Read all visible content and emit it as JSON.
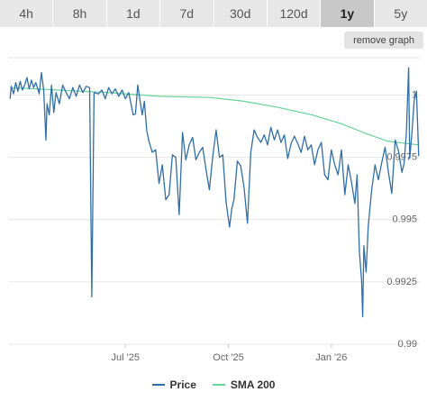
{
  "tabs": [
    {
      "label": "4h",
      "active": false
    },
    {
      "label": "8h",
      "active": false
    },
    {
      "label": "1d",
      "active": false
    },
    {
      "label": "7d",
      "active": false
    },
    {
      "label": "30d",
      "active": false
    },
    {
      "label": "120d",
      "active": false
    },
    {
      "label": "1y",
      "active": true
    },
    {
      "label": "5y",
      "active": false
    }
  ],
  "remove_graph_label": "remove graph",
  "colors": {
    "price": "#2f6fa7",
    "sma": "#67d49a",
    "grid": "#e6e6e6",
    "active_tab": "#c8c8c8"
  },
  "chart_data": {
    "type": "line",
    "title": "",
    "xlabel": "",
    "ylabel": "",
    "ylim": [
      0.99,
      1.0015
    ],
    "y_ticks": [
      1,
      0.9975,
      0.995,
      0.9925,
      0.99
    ],
    "y_tick_labels": [
      "1",
      "0.9975",
      "0.995",
      "0.9925",
      "0.99"
    ],
    "x_ticks": [
      {
        "label": "Jul '25",
        "date": "2025-07-01"
      },
      {
        "label": "Oct '25",
        "date": "2025-10-01"
      },
      {
        "label": "Jan '26",
        "date": "2026-01-01"
      }
    ],
    "legend": {
      "position": "bottom",
      "entries": [
        "Price",
        "SMA 200"
      ]
    },
    "grid": true,
    "series": [
      {
        "name": "Price",
        "color": "#2f6fa7",
        "points": [
          [
            "2025-03-20",
            0.99985
          ],
          [
            "2025-03-21",
            1.00035
          ],
          [
            "2025-03-23",
            1.00005
          ],
          [
            "2025-03-25",
            1.0005
          ],
          [
            "2025-03-27",
            1.00015
          ],
          [
            "2025-03-29",
            1.00055
          ],
          [
            "2025-03-31",
            1.0002
          ],
          [
            "2025-04-02",
            1.0004
          ],
          [
            "2025-04-04",
            1.0007
          ],
          [
            "2025-04-06",
            1.00025
          ],
          [
            "2025-04-08",
            1.0006
          ],
          [
            "2025-04-10",
            1.0003
          ],
          [
            "2025-04-12",
            1.0005
          ],
          [
            "2025-04-15",
            1.00005
          ],
          [
            "2025-04-17",
            1.0009
          ],
          [
            "2025-04-19",
            1.0002
          ],
          [
            "2025-04-21",
            0.9982
          ],
          [
            "2025-04-22",
            0.99965
          ],
          [
            "2025-04-24",
            0.9992
          ],
          [
            "2025-04-26",
            1.0004
          ],
          [
            "2025-04-28",
            0.9993
          ],
          [
            "2025-04-30",
            1.0001
          ],
          [
            "2025-05-03",
            0.99965
          ],
          [
            "2025-05-06",
            1.0004
          ],
          [
            "2025-05-09",
            1.0001
          ],
          [
            "2025-05-12",
            0.99985
          ],
          [
            "2025-05-15",
            1.0003
          ],
          [
            "2025-05-18",
            0.99995
          ],
          [
            "2025-05-21",
            1.0004
          ],
          [
            "2025-05-24",
            1.0001
          ],
          [
            "2025-05-27",
            1.00035
          ],
          [
            "2025-05-30",
            1.0003
          ],
          [
            "2025-06-01",
            0.9919
          ],
          [
            "2025-06-03",
            1.0001
          ],
          [
            "2025-06-07",
            1.00005
          ],
          [
            "2025-06-10",
            1.0002
          ],
          [
            "2025-06-13",
            0.99985
          ],
          [
            "2025-06-16",
            1.0003
          ],
          [
            "2025-06-19",
            1.00005
          ],
          [
            "2025-06-22",
            1.00025
          ],
          [
            "2025-06-25",
            0.99995
          ],
          [
            "2025-06-28",
            1.0002
          ],
          [
            "2025-07-01",
            0.99985
          ],
          [
            "2025-07-04",
            1.0001
          ],
          [
            "2025-07-08",
            0.9992
          ],
          [
            "2025-07-10",
            0.99925
          ],
          [
            "2025-07-12",
            1.0004
          ],
          [
            "2025-07-15",
            0.9995
          ],
          [
            "2025-07-16",
            0.9992
          ],
          [
            "2025-07-18",
            0.99975
          ],
          [
            "2025-07-20",
            0.9986
          ],
          [
            "2025-07-22",
            0.99815
          ],
          [
            "2025-07-25",
            0.9977
          ],
          [
            "2025-07-28",
            0.9978
          ],
          [
            "2025-07-31",
            0.99645
          ],
          [
            "2025-08-03",
            0.9972
          ],
          [
            "2025-08-06",
            0.9958
          ],
          [
            "2025-08-09",
            0.996
          ],
          [
            "2025-08-12",
            0.9976
          ],
          [
            "2025-08-15",
            0.9975
          ],
          [
            "2025-08-18",
            0.9952
          ],
          [
            "2025-08-21",
            0.9985
          ],
          [
            "2025-08-24",
            0.9974
          ],
          [
            "2025-08-27",
            0.998
          ],
          [
            "2025-08-30",
            0.9983
          ],
          [
            "2025-09-02",
            0.9974
          ],
          [
            "2025-09-05",
            0.9977
          ],
          [
            "2025-09-08",
            0.9979
          ],
          [
            "2025-09-11",
            0.997
          ],
          [
            "2025-09-14",
            0.9962
          ],
          [
            "2025-09-17",
            0.9975
          ],
          [
            "2025-09-20",
            0.9986
          ],
          [
            "2025-09-23",
            0.9975
          ],
          [
            "2025-09-26",
            0.9976
          ],
          [
            "2025-09-29",
            0.9957
          ],
          [
            "2025-10-02",
            0.9947
          ],
          [
            "2025-10-04",
            0.99545
          ],
          [
            "2025-10-06",
            0.9958
          ],
          [
            "2025-10-09",
            0.99735
          ],
          [
            "2025-10-12",
            0.99715
          ],
          [
            "2025-10-15",
            0.9963
          ],
          [
            "2025-10-18",
            0.99485
          ],
          [
            "2025-10-21",
            0.9977
          ],
          [
            "2025-10-24",
            0.9986
          ],
          [
            "2025-10-27",
            0.9983
          ],
          [
            "2025-10-30",
            0.9981
          ],
          [
            "2025-11-02",
            0.9984
          ],
          [
            "2025-11-05",
            0.998
          ],
          [
            "2025-11-08",
            0.9987
          ],
          [
            "2025-11-11",
            0.9982
          ],
          [
            "2025-11-14",
            0.9986
          ],
          [
            "2025-11-17",
            0.9981
          ],
          [
            "2025-11-20",
            0.9984
          ],
          [
            "2025-11-23",
            0.99745
          ],
          [
            "2025-11-26",
            0.99805
          ],
          [
            "2025-11-29",
            0.99835
          ],
          [
            "2025-12-02",
            0.99805
          ],
          [
            "2025-12-05",
            0.9977
          ],
          [
            "2025-12-08",
            0.99835
          ],
          [
            "2025-12-11",
            0.9978
          ],
          [
            "2025-12-14",
            0.998
          ],
          [
            "2025-12-17",
            0.9972
          ],
          [
            "2025-12-20",
            0.9978
          ],
          [
            "2025-12-23",
            0.9981
          ],
          [
            "2025-12-26",
            0.9968
          ],
          [
            "2025-12-29",
            0.9966
          ],
          [
            "2026-01-01",
            0.9978
          ],
          [
            "2026-01-04",
            0.9972
          ],
          [
            "2026-01-07",
            0.9968
          ],
          [
            "2026-01-10",
            0.9978
          ],
          [
            "2026-01-13",
            0.996
          ],
          [
            "2026-01-16",
            0.9972
          ],
          [
            "2026-01-19",
            0.9965
          ],
          [
            "2026-01-22",
            0.99565
          ],
          [
            "2026-01-24",
            0.9968
          ],
          [
            "2026-01-26",
            0.99375
          ],
          [
            "2026-01-28",
            0.99255
          ],
          [
            "2026-01-29",
            0.9911
          ],
          [
            "2026-01-30",
            0.99395
          ],
          [
            "2026-02-01",
            0.9929
          ],
          [
            "2026-02-03",
            0.99475
          ],
          [
            "2026-02-06",
            0.9962
          ],
          [
            "2026-02-09",
            0.9972
          ],
          [
            "2026-02-12",
            0.9966
          ],
          [
            "2026-02-15",
            0.9973
          ],
          [
            "2026-02-18",
            0.9979
          ],
          [
            "2026-02-21",
            0.9969
          ],
          [
            "2026-02-24",
            0.99605
          ],
          [
            "2026-02-27",
            0.9982
          ],
          [
            "2026-03-02",
            0.99775
          ],
          [
            "2026-03-05",
            0.9969
          ],
          [
            "2026-03-07",
            0.99725
          ],
          [
            "2026-03-09",
            0.9985
          ],
          [
            "2026-03-11",
            1.0011
          ],
          [
            "2026-03-12",
            0.99745
          ],
          [
            "2026-03-14",
            0.9985
          ],
          [
            "2026-03-16",
            0.9998
          ],
          [
            "2026-03-18",
            1.00015
          ],
          [
            "2026-03-20",
            0.99755
          ]
        ]
      },
      {
        "name": "SMA 200",
        "color": "#67d49a",
        "points": [
          [
            "2025-03-20",
            1.0003
          ],
          [
            "2025-05-01",
            1.0002
          ],
          [
            "2025-06-15",
            1.0001
          ],
          [
            "2025-08-01",
            0.99995
          ],
          [
            "2025-09-15",
            0.9999
          ],
          [
            "2025-10-15",
            0.99975
          ],
          [
            "2025-11-15",
            0.9995
          ],
          [
            "2025-12-15",
            0.9992
          ],
          [
            "2026-01-10",
            0.99885
          ],
          [
            "2026-02-01",
            0.99845
          ],
          [
            "2026-02-20",
            0.99815
          ],
          [
            "2026-03-20",
            0.998
          ]
        ]
      }
    ]
  }
}
